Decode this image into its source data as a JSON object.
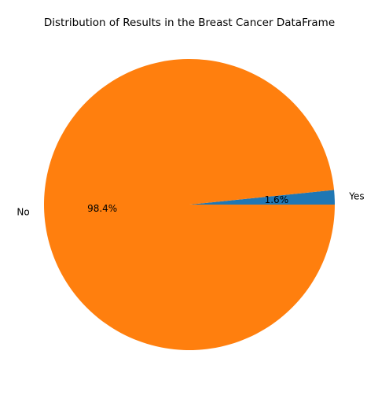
{
  "chart_data": {
    "type": "pie",
    "title": "Distribution of Results in the Breast Cancer DataFrame",
    "slices": [
      {
        "label": "Yes",
        "value": 1.6,
        "pct_label": "1.6%",
        "color": "#1f77b4"
      },
      {
        "label": "No",
        "value": 98.4,
        "pct_label": "98.4%",
        "color": "#ff7f0e"
      }
    ],
    "start_angle_deg": 0,
    "direction": "counterclockwise"
  }
}
